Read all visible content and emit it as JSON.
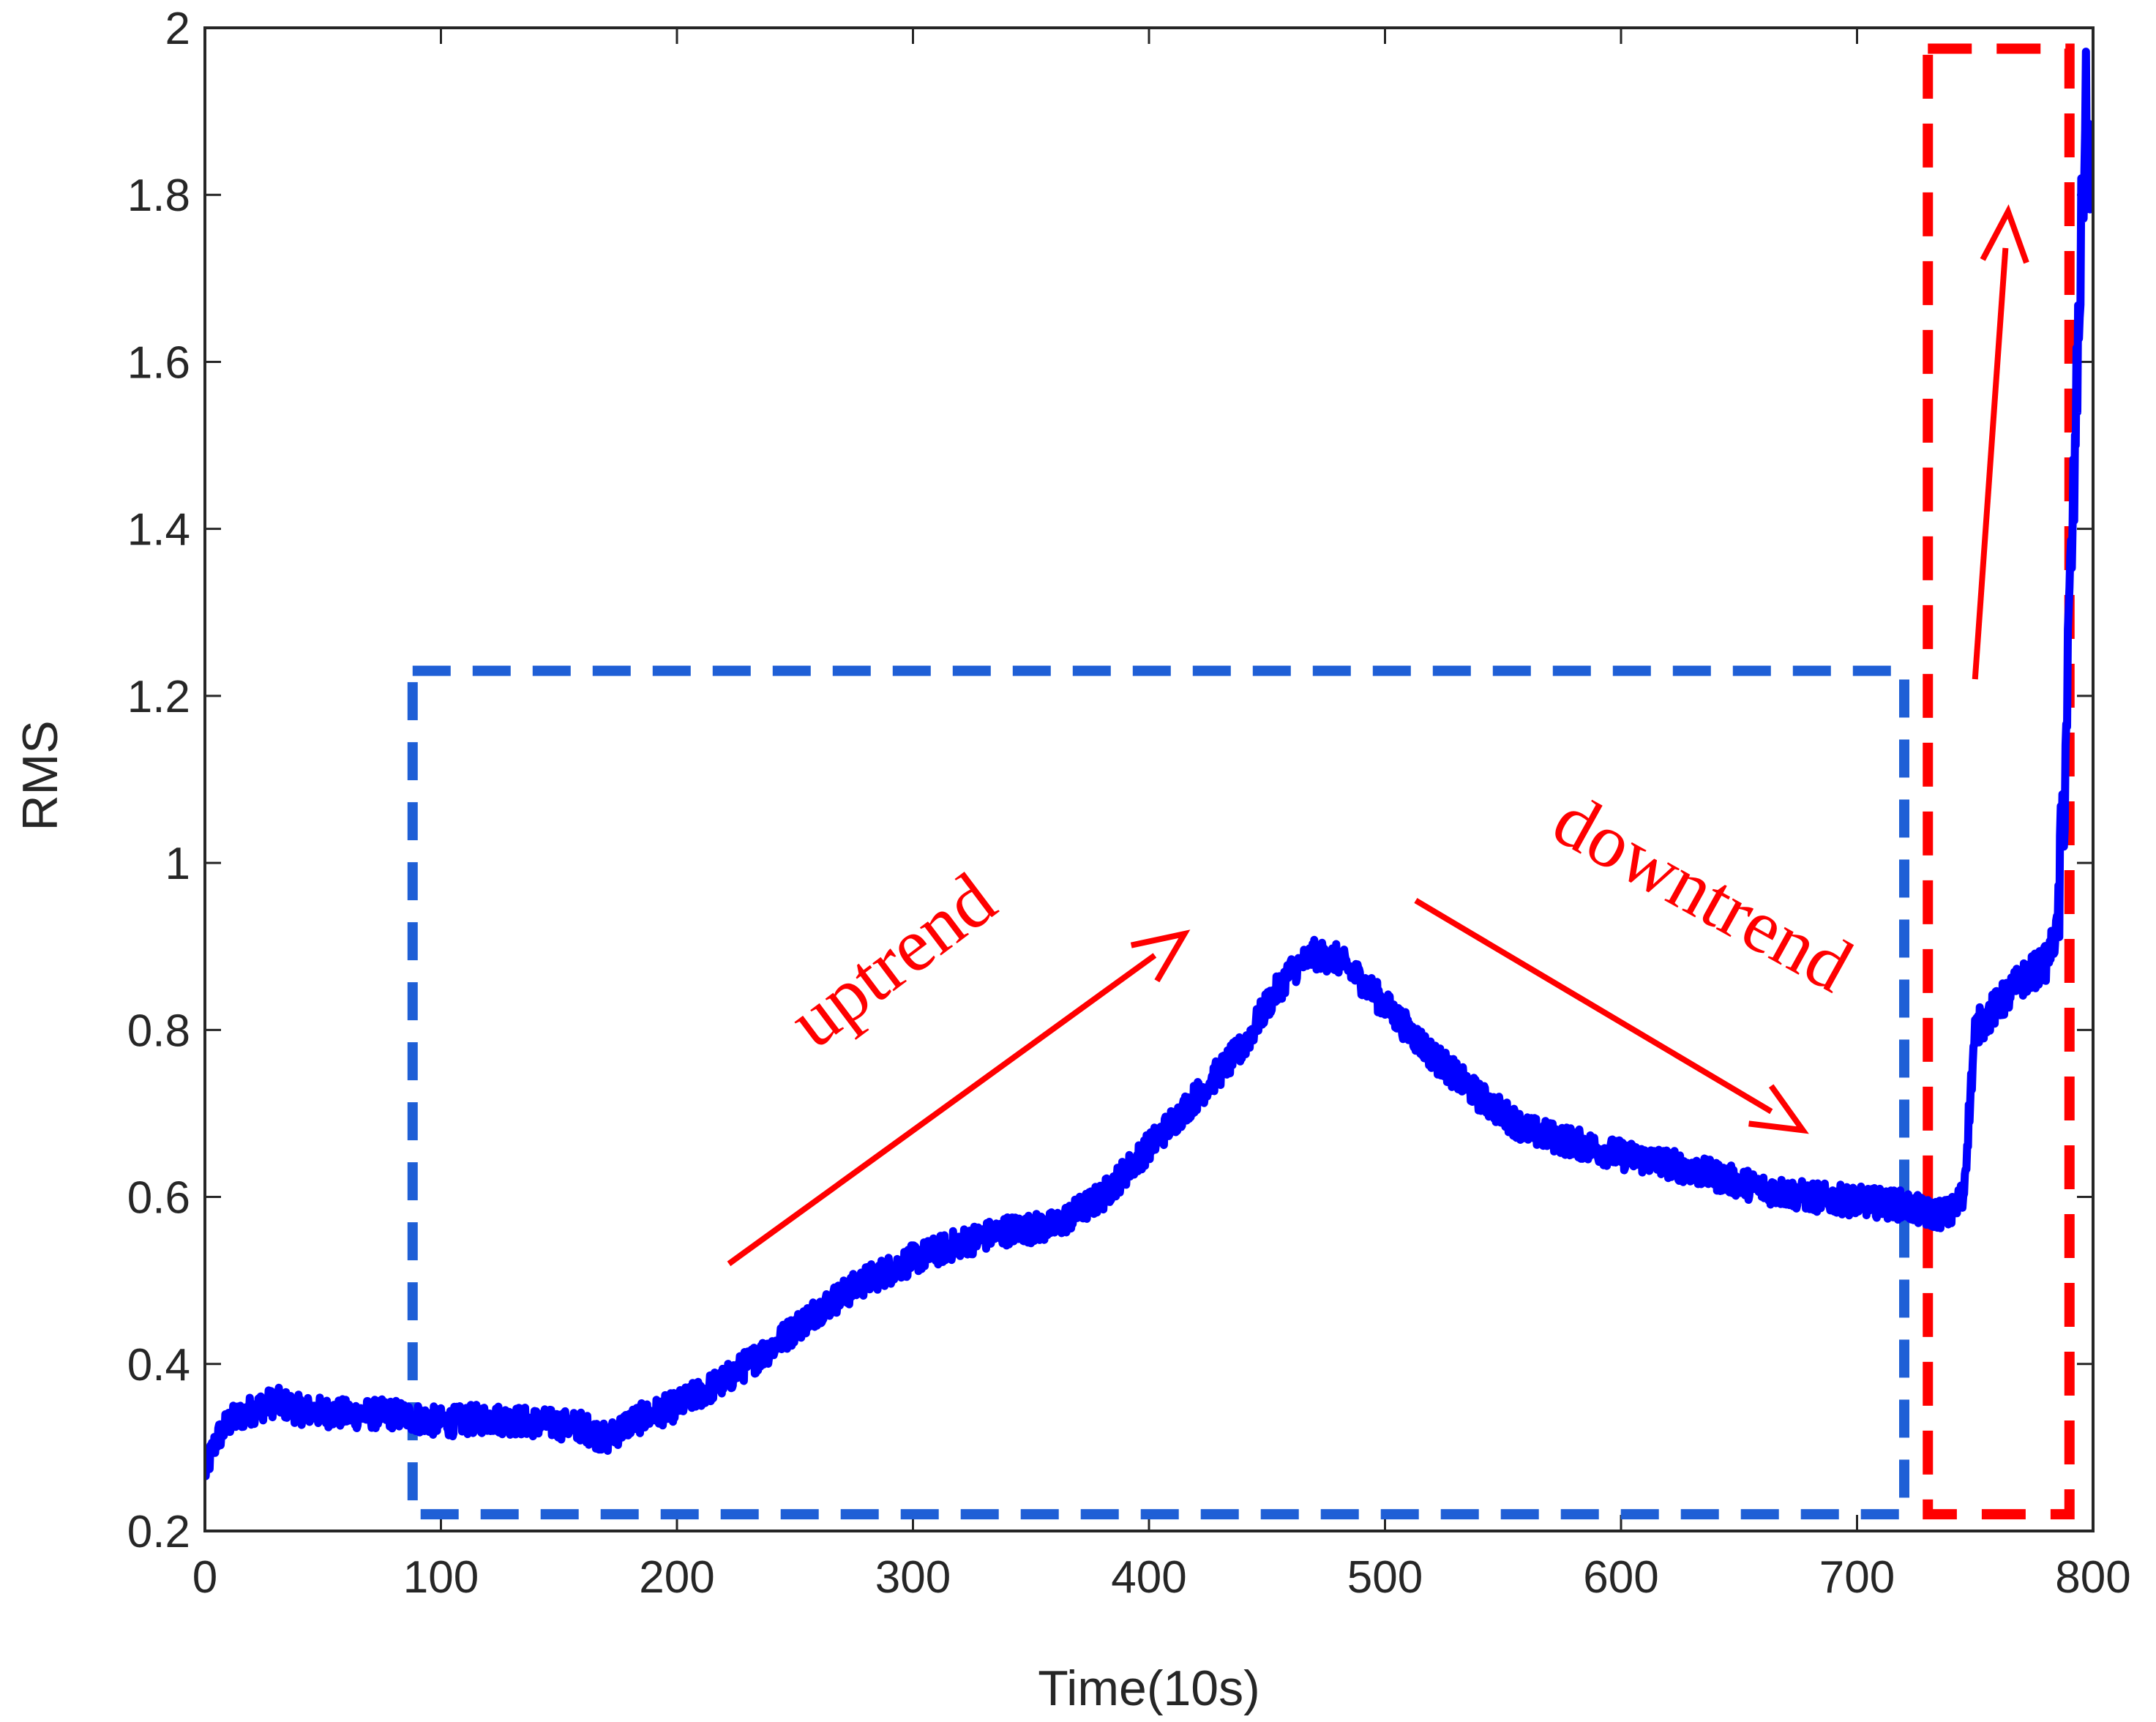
{
  "chart_data": {
    "type": "line",
    "title": "",
    "xlabel": "Time(10s)",
    "ylabel": "RMS",
    "xlim": [
      0,
      800
    ],
    "ylim": [
      0.2,
      2.0
    ],
    "xticks": [
      0,
      100,
      200,
      300,
      400,
      500,
      600,
      700,
      800
    ],
    "xtick_labels": [
      "0",
      "100",
      "200",
      "300",
      "400",
      "500",
      "600",
      "700",
      "800"
    ],
    "yticks": [
      0.2,
      0.4,
      0.6,
      0.8,
      1.0,
      1.2,
      1.4,
      1.6,
      1.8,
      2.0
    ],
    "ytick_labels": [
      "0.2",
      "0.4",
      "0.6",
      "0.8",
      "1",
      "1.2",
      "1.4",
      "1.6",
      "1.8",
      "2"
    ],
    "grid": false,
    "series": [
      {
        "name": "RMS",
        "color": "#0000ff",
        "noise": 0.018,
        "x": [
          0,
          5,
          10,
          20,
          30,
          40,
          60,
          80,
          100,
          120,
          140,
          160,
          170,
          180,
          200,
          220,
          240,
          260,
          280,
          300,
          320,
          340,
          360,
          380,
          400,
          420,
          440,
          450,
          460,
          470,
          480,
          490,
          500,
          520,
          540,
          560,
          580,
          600,
          620,
          640,
          660,
          680,
          700,
          720,
          730,
          740,
          745,
          750,
          760,
          770,
          780,
          785,
          788,
          790,
          792,
          795,
          797,
          800
        ],
        "y": [
          0.27,
          0.31,
          0.33,
          0.345,
          0.355,
          0.345,
          0.34,
          0.34,
          0.33,
          0.335,
          0.33,
          0.325,
          0.31,
          0.33,
          0.35,
          0.38,
          0.42,
          0.465,
          0.5,
          0.525,
          0.545,
          0.56,
          0.565,
          0.6,
          0.66,
          0.72,
          0.78,
          0.83,
          0.87,
          0.89,
          0.885,
          0.86,
          0.83,
          0.77,
          0.72,
          0.68,
          0.665,
          0.65,
          0.64,
          0.625,
          0.61,
          0.6,
          0.595,
          0.59,
          0.58,
          0.58,
          0.6,
          0.8,
          0.83,
          0.86,
          0.88,
          0.92,
          1.1,
          1.3,
          1.45,
          1.75,
          1.9,
          1.8
        ]
      }
    ],
    "annotations": [
      {
        "text": "uptrend",
        "color": "#ff0000"
      },
      {
        "text": "downtrend",
        "color": "#ff0000"
      }
    ],
    "arrows": [
      {
        "from": [
          222,
          0.52
        ],
        "to": [
          415,
          0.915
        ],
        "color": "#ff0000"
      },
      {
        "from": [
          513,
          0.955
        ],
        "to": [
          677,
          0.68
        ],
        "color": "#ff0000"
      },
      {
        "from": [
          750,
          1.22
        ],
        "to": [
          764,
          1.78
        ],
        "color": "#ff0000"
      }
    ],
    "regions": [
      {
        "x": [
          88,
          720
        ],
        "y": [
          0.22,
          1.23
        ],
        "color": "#1f5fd6",
        "style": "dashed"
      },
      {
        "x": [
          730,
          790
        ],
        "y": [
          0.22,
          1.975
        ],
        "color": "#ff0000",
        "style": "dashed"
      }
    ]
  }
}
